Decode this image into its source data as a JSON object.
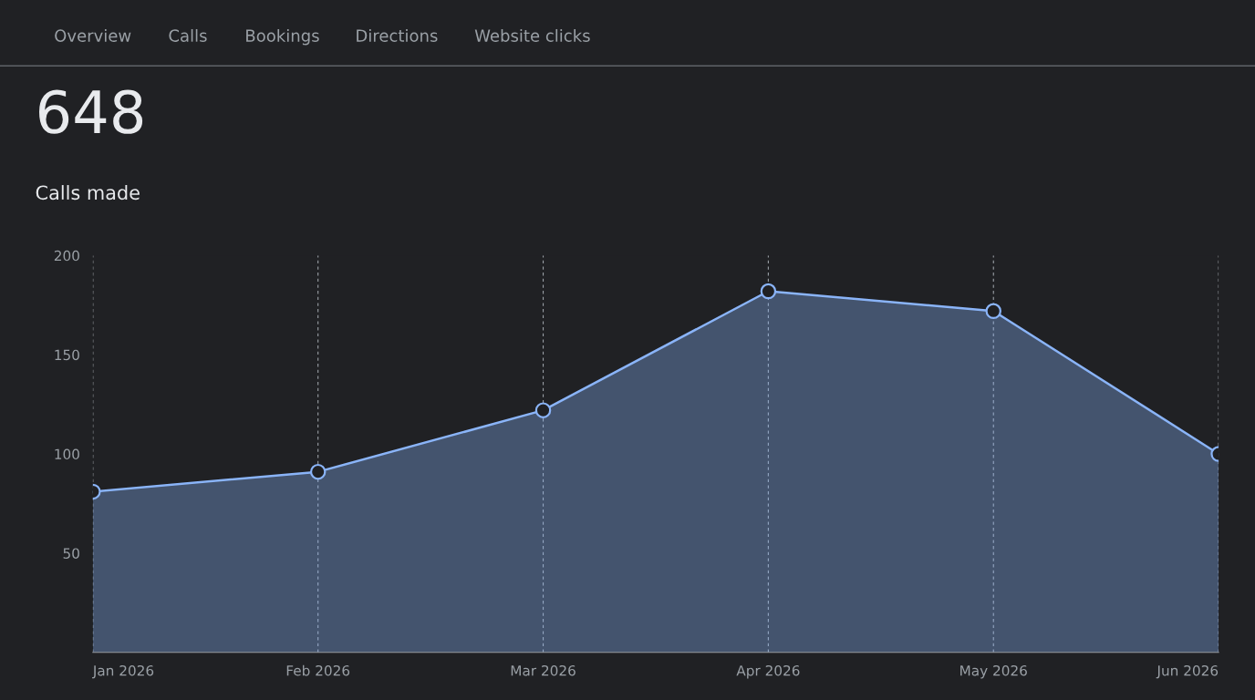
{
  "chart_data": {
    "type": "area",
    "title": "648",
    "subtitle": "Calls made",
    "annotations": [
      "Overview",
      "Calls",
      "Bookings",
      "Directions",
      "Website clicks"
    ],
    "categories": [
      "Jan 2026",
      "Feb 2026",
      "Mar 2026",
      "Apr 2026",
      "May 2026",
      "Jun 2026"
    ],
    "series": [
      {
        "color": "#8ab4f8",
        "values": [
          81,
          91,
          122,
          182,
          172,
          100
        ]
      }
    ],
    "ylim": [
      0,
      200
    ],
    "yticks": [
      {
        "value": 0,
        "label": null
      },
      50,
      100,
      150,
      200
    ],
    "grid": "x",
    "marker": "circle",
    "line_style": "solid"
  }
}
